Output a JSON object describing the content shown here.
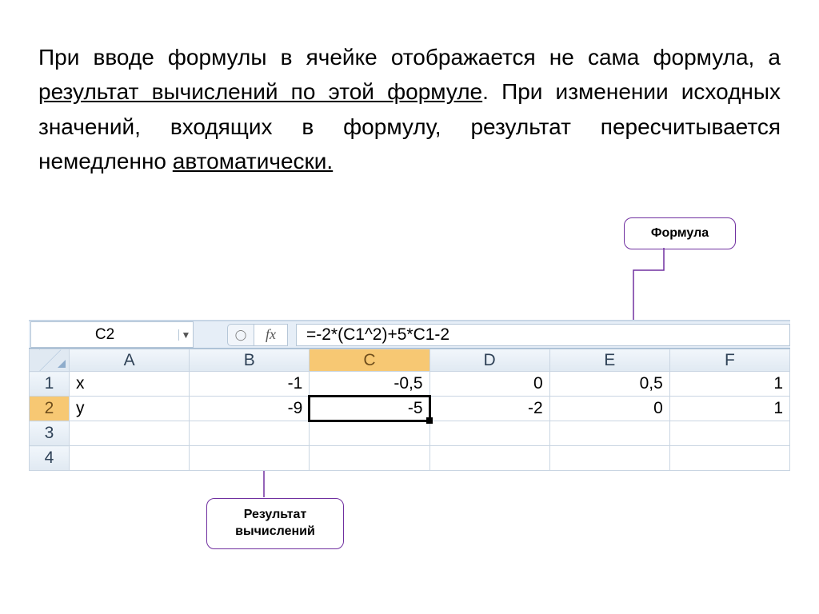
{
  "text": {
    "p1a": "При вводе формулы в ячейке отображается не сама формула, а ",
    "p1u": "результат вычислений по этой формуле",
    "p1b": ". При изменении исходных значений, входящих в формулу, результат пересчитывается немедленно ",
    "p1u2": "автоматически."
  },
  "callouts": {
    "formula": "Формула",
    "result_l1": "Результат",
    "result_l2": "вычислений"
  },
  "spreadsheet": {
    "name_box": "C2",
    "fx_label": "fx",
    "formula": "=-2*(C1^2)+5*C1-2",
    "columns": [
      "A",
      "B",
      "C",
      "D",
      "E",
      "F"
    ],
    "active_col": "C",
    "active_row": "2",
    "rows": [
      {
        "hdr": "1",
        "cells": [
          "x",
          "-1",
          "-0,5",
          "0",
          "0,5",
          "1"
        ],
        "leftAlign": [
          0
        ]
      },
      {
        "hdr": "2",
        "cells": [
          "y",
          "-9",
          "-5",
          "-2",
          "0",
          "1"
        ],
        "leftAlign": [
          0
        ]
      },
      {
        "hdr": "3",
        "cells": [
          "",
          "",
          "",
          "",
          "",
          ""
        ]
      },
      {
        "hdr": "4",
        "cells": [
          "",
          "",
          "",
          "",
          "",
          ""
        ]
      }
    ],
    "selected": {
      "row": 1,
      "col": 2
    }
  },
  "colors": {
    "callout_border": "#7030a0",
    "grid_border": "#c9d5e2",
    "header_bg": "#e0e9f2",
    "active_hdr": "#f7c873"
  }
}
